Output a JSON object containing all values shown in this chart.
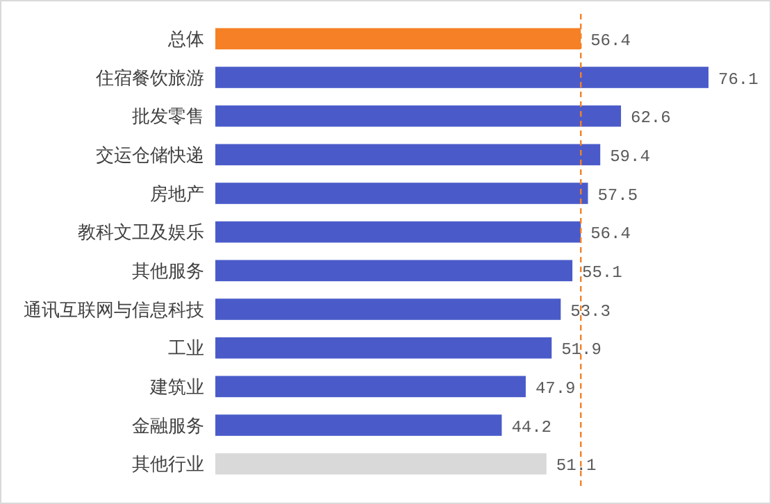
{
  "chart_data": {
    "type": "bar",
    "orientation": "horizontal",
    "categories": [
      "总体",
      "住宿餐饮旅游",
      "批发零售",
      "交运仓储快递",
      "房地产",
      "教科文卫及娱乐",
      "其他服务",
      "通讯互联网与信息科技",
      "工业",
      "建筑业",
      "金融服务",
      "其他行业"
    ],
    "values": [
      56.4,
      76.1,
      62.6,
      59.4,
      57.5,
      56.4,
      55.1,
      53.3,
      51.9,
      47.9,
      44.2,
      51.1
    ],
    "colors": [
      "#f58025",
      "#4a5bc9",
      "#4a5bc9",
      "#4a5bc9",
      "#4a5bc9",
      "#4a5bc9",
      "#4a5bc9",
      "#4a5bc9",
      "#4a5bc9",
      "#4a5bc9",
      "#4a5bc9",
      "#d9d9d9"
    ],
    "data_labels": true,
    "ref_lines": [
      {
        "axis": "x",
        "value": 56.4,
        "color": "#f58025",
        "line_style": "dashed"
      }
    ]
  }
}
